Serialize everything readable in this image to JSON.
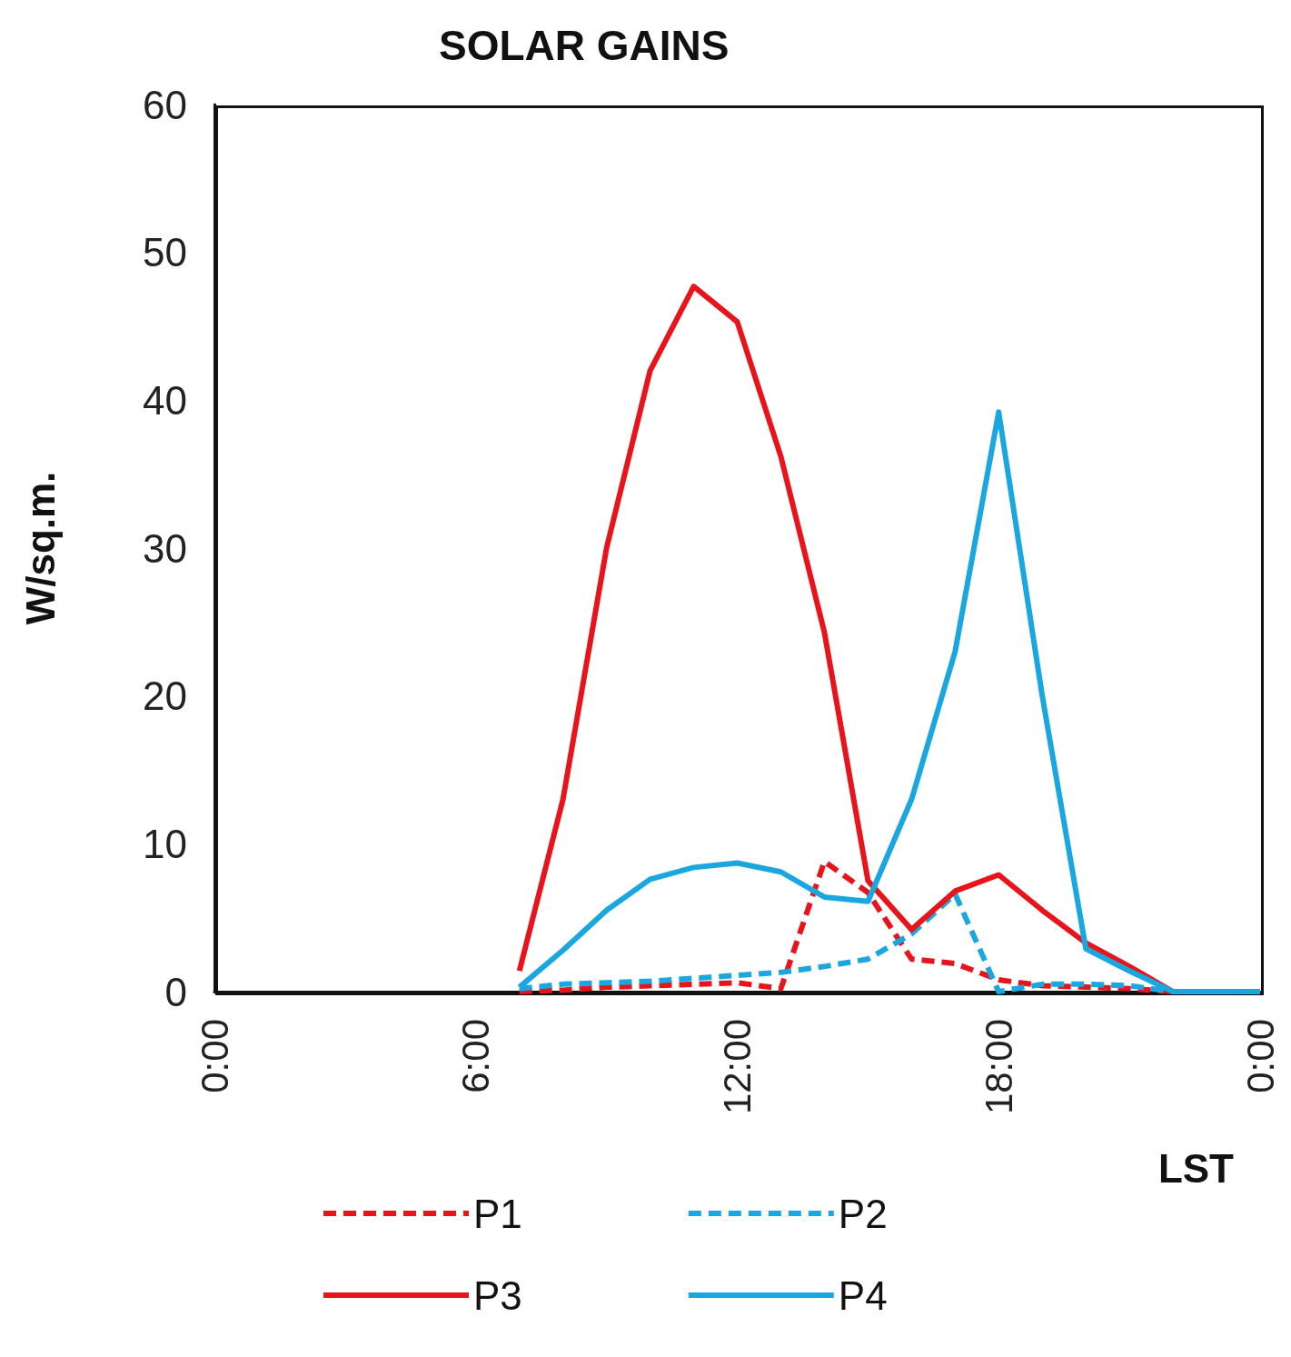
{
  "chart_data": {
    "type": "line",
    "title": "SOLAR GAINS",
    "ylabel": "W/sq.m.",
    "xlabel": "LST",
    "x": [
      7,
      8,
      9,
      10,
      11,
      12,
      13,
      14,
      15,
      16,
      17,
      18,
      19,
      20,
      21,
      22,
      23,
      24
    ],
    "series": [
      {
        "name": "P1",
        "color": "#e8141b",
        "line_style": "dashed",
        "values": [
          0,
          0.1,
          0.3,
          0.4,
          0.5,
          0.6,
          0.2,
          8.8,
          6.7,
          2.2,
          1.9,
          0.8,
          0.4,
          0.3,
          0.2,
          0,
          0,
          0
        ]
      },
      {
        "name": "P2",
        "color": "#1aa7e0",
        "line_style": "dashed",
        "values": [
          0.2,
          0.5,
          0.6,
          0.7,
          0.9,
          1.1,
          1.3,
          1.7,
          2.2,
          3.9,
          6.6,
          0,
          0.5,
          0.5,
          0.4,
          0,
          0,
          0
        ]
      },
      {
        "name": "P3",
        "color": "#e8141b",
        "line_style": "solid",
        "values": [
          1.4,
          13,
          30,
          42,
          47.7,
          45.3,
          36.2,
          24.3,
          7.5,
          4.2,
          6.8,
          7.9,
          5.5,
          3.3,
          1.7,
          0,
          0,
          0
        ]
      },
      {
        "name": "P4",
        "color": "#1aa7e0",
        "line_style": "solid",
        "values": [
          0.3,
          2.8,
          5.5,
          7.6,
          8.4,
          8.7,
          8.1,
          6.4,
          6.1,
          13,
          23,
          39.2,
          20,
          2.9,
          1.4,
          0,
          0,
          0
        ]
      }
    ],
    "xlim": [
      0,
      24
    ],
    "xticks": [
      {
        "value": 0,
        "label": "0:00"
      },
      {
        "value": 6,
        "label": "6:00"
      },
      {
        "value": 12,
        "label": "12:00"
      },
      {
        "value": 18,
        "label": "18:00"
      },
      {
        "value": 24,
        "label": "0:00"
      }
    ],
    "ylim": [
      0,
      60
    ],
    "yticks": [
      0,
      10,
      20,
      30,
      40,
      50,
      60
    ],
    "grid": false,
    "legend": "bottom",
    "marker": "none"
  }
}
